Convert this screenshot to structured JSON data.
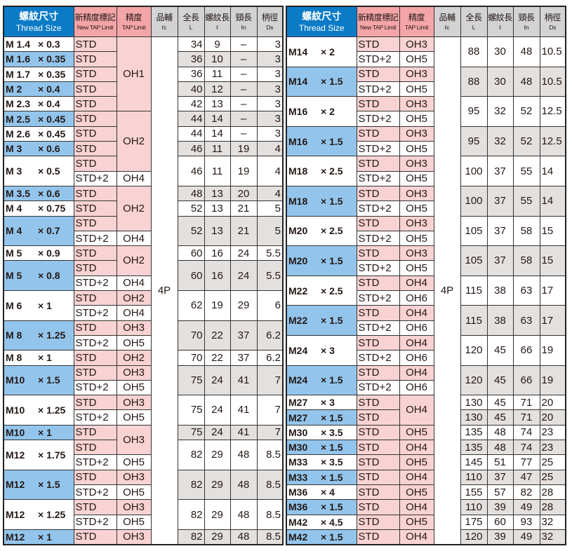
{
  "header": {
    "thread_size_jp": "螺紋尺寸",
    "thread_size_en": "Thread Size",
    "new_limit_jp": "新精度標記",
    "new_limit_en": "New TAP Limit",
    "limit_jp": "精度",
    "limit_en": "TAP Limit",
    "lc_jp": "品輔",
    "lc_en": "ℓc",
    "L_jp": "全長",
    "L_en": "L",
    "l_jp": "螺紋長",
    "l_en": "ℓ",
    "ln_jp": "頸長",
    "ln_en": "ℓn",
    "ds_jp": "柄徑",
    "ds_en": "Ds"
  },
  "colors": {
    "header_blue": "#0b7bc6",
    "size_blue": "#93c5ec",
    "pink": "#f9d3d3",
    "header_pink": "#f4a5a8",
    "gray": "#e4e0dd"
  },
  "tables": [
    {
      "lc": "4P",
      "groups": [
        {
          "m": "M  1.4",
          "p": "× 0.3",
          "blue": false,
          "limits": [
            "STD"
          ],
          "L": "34",
          "l": "9",
          "ln": "–",
          "ds": "3"
        },
        {
          "m": "M  1.6",
          "p": "× 0.35",
          "blue": true,
          "limits": [
            "STD"
          ],
          "L": "36",
          "l": "10",
          "ln": "–",
          "ds": "3"
        },
        {
          "m": "M  1.7",
          "p": "× 0.35",
          "blue": false,
          "limits": [
            "STD"
          ],
          "L": "36",
          "l": "11",
          "ln": "–",
          "ds": "3"
        },
        {
          "m": "M  2",
          "p": "× 0.4",
          "blue": true,
          "limits": [
            "STD"
          ],
          "L": "40",
          "l": "12",
          "ln": "–",
          "ds": "3"
        },
        {
          "m": "M  2.3",
          "p": "× 0.4",
          "blue": false,
          "limits": [
            "STD"
          ],
          "L": "42",
          "l": "13",
          "ln": "–",
          "ds": "3"
        },
        {
          "m": "M  2.5",
          "p": "× 0.45",
          "blue": true,
          "limits": [
            "STD"
          ],
          "L": "44",
          "l": "14",
          "ln": "–",
          "ds": "3"
        },
        {
          "m": "M  2.6",
          "p": "× 0.45",
          "blue": false,
          "limits": [
            "STD"
          ],
          "L": "44",
          "l": "14",
          "ln": "–",
          "ds": "3"
        },
        {
          "m": "M  3",
          "p": "× 0.6",
          "blue": true,
          "limits": [
            "STD"
          ],
          "L": "46",
          "l": "11",
          "ln": "19",
          "ds": "4"
        },
        {
          "m": "M  3",
          "p": "× 0.5",
          "blue": false,
          "limits": [
            "STD",
            "STD+2"
          ],
          "L": "46",
          "l": "11",
          "ln": "19",
          "ds": "4"
        },
        {
          "m": "M  3.5",
          "p": "× 0.6",
          "blue": true,
          "limits": [
            "STD"
          ],
          "L": "48",
          "l": "13",
          "ln": "20",
          "ds": "4"
        },
        {
          "m": "M  4",
          "p": "× 0.75",
          "blue": false,
          "limits": [
            "STD"
          ],
          "L": "52",
          "l": "13",
          "ln": "21",
          "ds": "5"
        },
        {
          "m": "M  4",
          "p": "× 0.7",
          "blue": true,
          "limits": [
            "STD",
            "STD+2"
          ],
          "L": "52",
          "l": "13",
          "ln": "21",
          "ds": "5"
        },
        {
          "m": "M  5",
          "p": "× 0.9",
          "blue": false,
          "limits": [
            "STD"
          ],
          "L": "60",
          "l": "16",
          "ln": "24",
          "ds": "5.5"
        },
        {
          "m": "M  5",
          "p": "× 0.8",
          "blue": true,
          "limits": [
            "STD",
            "STD+2"
          ],
          "L": "60",
          "l": "16",
          "ln": "24",
          "ds": "5.5"
        },
        {
          "m": "M  6",
          "p": "× 1",
          "blue": false,
          "limits": [
            "STD",
            "STD+2"
          ],
          "L": "62",
          "l": "19",
          "ln": "29",
          "ds": "6"
        },
        {
          "m": "M  8",
          "p": "× 1.25",
          "blue": true,
          "limits": [
            "STD",
            "STD+2"
          ],
          "L": "70",
          "l": "22",
          "ln": "37",
          "ds": "6.2"
        },
        {
          "m": "M  8",
          "p": "× 1",
          "blue": false,
          "limits": [
            "STD"
          ],
          "L": "70",
          "l": "22",
          "ln": "37",
          "ds": "6.2"
        },
        {
          "m": "M10",
          "p": "× 1.5",
          "blue": true,
          "limits": [
            "STD",
            "STD+2"
          ],
          "L": "75",
          "l": "24",
          "ln": "41",
          "ds": "7"
        },
        {
          "m": "M10",
          "p": "× 1.25",
          "blue": false,
          "limits": [
            "STD",
            "STD+2"
          ],
          "L": "75",
          "l": "24",
          "ln": "41",
          "ds": "7"
        },
        {
          "m": "M10",
          "p": "× 1",
          "blue": true,
          "limits": [
            "STD"
          ],
          "L": "75",
          "l": "24",
          "ln": "41",
          "ds": "7"
        },
        {
          "m": "M12",
          "p": "× 1.75",
          "blue": false,
          "limits": [
            "STD",
            "STD+2"
          ],
          "L": "82",
          "l": "29",
          "ln": "48",
          "ds": "8.5"
        },
        {
          "m": "M12",
          "p": "× 1.5",
          "blue": true,
          "limits": [
            "STD",
            "STD+2"
          ],
          "L": "82",
          "l": "29",
          "ln": "48",
          "ds": "8.5"
        },
        {
          "m": "M12",
          "p": "× 1.25",
          "blue": false,
          "limits": [
            "STD",
            "STD+2"
          ],
          "L": "82",
          "l": "29",
          "ln": "48",
          "ds": "8.5"
        },
        {
          "m": "M12",
          "p": "× 1",
          "blue": true,
          "limits": [
            "STD"
          ],
          "L": "82",
          "l": "29",
          "ln": "48",
          "ds": "8.5"
        }
      ],
      "tap": [
        {
          "v": "OH1",
          "span": 5
        },
        {
          "v": "OH2",
          "span": 4
        },
        {
          "v": "OH4",
          "span": 1
        },
        {
          "v": "OH2",
          "span": 3
        },
        {
          "v": "OH4",
          "span": 1
        },
        {
          "v": "OH2",
          "span": 2
        },
        {
          "v": "OH4",
          "span": 1
        },
        {
          "v": "OH2",
          "span": 1
        },
        {
          "v": "OH4",
          "span": 1
        },
        {
          "v": "OH3",
          "span": 1
        },
        {
          "v": "OH5",
          "span": 1
        },
        {
          "v": "OH2",
          "span": 1
        },
        {
          "v": "OH3",
          "span": 1
        },
        {
          "v": "OH5",
          "span": 1
        },
        {
          "v": "OH3",
          "span": 1
        },
        {
          "v": "OH5",
          "span": 1
        },
        {
          "v": "OH3",
          "span": 2
        },
        {
          "v": "OH5",
          "span": 1
        },
        {
          "v": "OH3",
          "span": 1
        },
        {
          "v": "OH5",
          "span": 1
        },
        {
          "v": "OH3",
          "span": 1
        },
        {
          "v": "OH5",
          "span": 1
        },
        {
          "v": "OH3",
          "span": 1
        }
      ]
    },
    {
      "lc": "4P",
      "groups": [
        {
          "m": "M14",
          "p": "× 2",
          "blue": false,
          "limits": [
            "STD",
            "STD+2"
          ],
          "L": "88",
          "l": "30",
          "ln": "48",
          "ds": "10.5"
        },
        {
          "m": "M14",
          "p": "× 1.5",
          "blue": true,
          "limits": [
            "STD",
            "STD+2"
          ],
          "L": "88",
          "l": "30",
          "ln": "48",
          "ds": "10.5"
        },
        {
          "m": "M16",
          "p": "× 2",
          "blue": false,
          "limits": [
            "STD",
            "STD+2"
          ],
          "L": "95",
          "l": "32",
          "ln": "52",
          "ds": "12.5"
        },
        {
          "m": "M16",
          "p": "× 1.5",
          "blue": true,
          "limits": [
            "STD",
            "STD+2"
          ],
          "L": "95",
          "l": "32",
          "ln": "52",
          "ds": "12.5"
        },
        {
          "m": "M18",
          "p": "× 2.5",
          "blue": false,
          "limits": [
            "STD",
            "STD+2"
          ],
          "L": "100",
          "l": "37",
          "ln": "55",
          "ds": "14"
        },
        {
          "m": "M18",
          "p": "× 1.5",
          "blue": true,
          "limits": [
            "STD",
            "STD+2"
          ],
          "L": "100",
          "l": "37",
          "ln": "55",
          "ds": "14"
        },
        {
          "m": "M20",
          "p": "× 2.5",
          "blue": false,
          "limits": [
            "STD",
            "STD+2"
          ],
          "L": "105",
          "l": "37",
          "ln": "58",
          "ds": "15"
        },
        {
          "m": "M20",
          "p": "× 1.5",
          "blue": true,
          "limits": [
            "STD",
            "STD+2"
          ],
          "L": "105",
          "l": "37",
          "ln": "58",
          "ds": "15"
        },
        {
          "m": "M22",
          "p": "× 2.5",
          "blue": false,
          "limits": [
            "STD",
            "STD+2"
          ],
          "L": "115",
          "l": "38",
          "ln": "63",
          "ds": "17"
        },
        {
          "m": "M22",
          "p": "× 1.5",
          "blue": true,
          "limits": [
            "STD",
            "STD+2"
          ],
          "L": "115",
          "l": "38",
          "ln": "63",
          "ds": "17"
        },
        {
          "m": "M24",
          "p": "× 3",
          "blue": false,
          "limits": [
            "STD",
            "STD+2"
          ],
          "L": "120",
          "l": "45",
          "ln": "66",
          "ds": "19"
        },
        {
          "m": "M24",
          "p": "× 1.5",
          "blue": true,
          "limits": [
            "STD",
            "STD+2"
          ],
          "L": "120",
          "l": "45",
          "ln": "66",
          "ds": "19"
        },
        {
          "m": "M27",
          "p": "× 3",
          "blue": false,
          "limits": [
            "STD"
          ],
          "L": "130",
          "l": "45",
          "ln": "71",
          "ds": "20"
        },
        {
          "m": "M27",
          "p": "× 1.5",
          "blue": true,
          "limits": [
            "STD"
          ],
          "L": "130",
          "l": "45",
          "ln": "71",
          "ds": "20"
        },
        {
          "m": "M30",
          "p": "× 3.5",
          "blue": false,
          "limits": [
            "STD"
          ],
          "L": "135",
          "l": "48",
          "ln": "74",
          "ds": "23"
        },
        {
          "m": "M30",
          "p": "× 1.5",
          "blue": true,
          "limits": [
            "STD"
          ],
          "L": "135",
          "l": "48",
          "ln": "74",
          "ds": "23"
        },
        {
          "m": "M33",
          "p": "× 3.5",
          "blue": false,
          "limits": [
            "STD"
          ],
          "L": "145",
          "l": "51",
          "ln": "77",
          "ds": "25"
        },
        {
          "m": "M33",
          "p": "× 1.5",
          "blue": true,
          "limits": [
            "STD"
          ],
          "L": "110",
          "l": "37",
          "ln": "47",
          "ds": "25"
        },
        {
          "m": "M36",
          "p": "× 4",
          "blue": false,
          "limits": [
            "STD"
          ],
          "L": "155",
          "l": "57",
          "ln": "82",
          "ds": "28"
        },
        {
          "m": "M36",
          "p": "× 1.5",
          "blue": true,
          "limits": [
            "STD"
          ],
          "L": "110",
          "l": "39",
          "ln": "49",
          "ds": "28"
        },
        {
          "m": "M42",
          "p": "× 4.5",
          "blue": false,
          "limits": [
            "STD"
          ],
          "L": "175",
          "l": "60",
          "ln": "93",
          "ds": "32"
        },
        {
          "m": "M42",
          "p": "× 1.5",
          "blue": true,
          "limits": [
            "STD"
          ],
          "L": "120",
          "l": "39",
          "ln": "49",
          "ds": "32"
        }
      ],
      "tap": [
        {
          "v": "OH3",
          "span": 1
        },
        {
          "v": "OH5",
          "span": 1
        },
        {
          "v": "OH3",
          "span": 1
        },
        {
          "v": "OH5",
          "span": 1
        },
        {
          "v": "OH3",
          "span": 1
        },
        {
          "v": "OH5",
          "span": 1
        },
        {
          "v": "OH3",
          "span": 1
        },
        {
          "v": "OH5",
          "span": 1
        },
        {
          "v": "OH3",
          "span": 1
        },
        {
          "v": "OH5",
          "span": 1
        },
        {
          "v": "OH3",
          "span": 1
        },
        {
          "v": "OH5",
          "span": 1
        },
        {
          "v": "OH3",
          "span": 1
        },
        {
          "v": "OH5",
          "span": 1
        },
        {
          "v": "OH3",
          "span": 1
        },
        {
          "v": "OH5",
          "span": 1
        },
        {
          "v": "OH4",
          "span": 1
        },
        {
          "v": "OH6",
          "span": 1
        },
        {
          "v": "OH4",
          "span": 1
        },
        {
          "v": "OH6",
          "span": 1
        },
        {
          "v": "OH4",
          "span": 1
        },
        {
          "v": "OH6",
          "span": 1
        },
        {
          "v": "OH4",
          "span": 1
        },
        {
          "v": "OH6",
          "span": 1
        },
        {
          "v": "OH4",
          "span": 2
        },
        {
          "v": "OH5",
          "span": 1
        },
        {
          "v": "OH4",
          "span": 1
        },
        {
          "v": "OH5",
          "span": 1
        },
        {
          "v": "OH4",
          "span": 1
        },
        {
          "v": "OH5",
          "span": 1
        },
        {
          "v": "OH4",
          "span": 1
        },
        {
          "v": "OH5",
          "span": 1
        },
        {
          "v": "OH4",
          "span": 1
        }
      ]
    }
  ]
}
